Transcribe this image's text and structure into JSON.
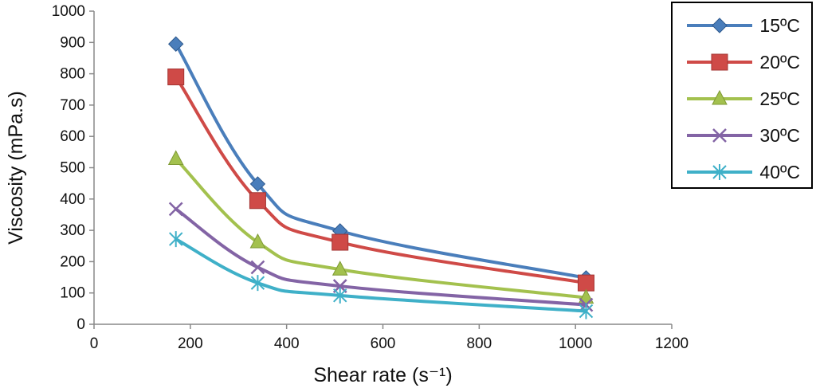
{
  "chart_data": {
    "type": "line",
    "title": "",
    "xlabel": "Shear rate (s⁻¹)",
    "ylabel": "Viscosity (mPa.s)",
    "xlim": [
      0,
      1200
    ],
    "ylim": [
      0,
      1000
    ],
    "x_ticks": [
      0,
      200,
      400,
      600,
      800,
      1000,
      1200
    ],
    "y_ticks": [
      0,
      100,
      200,
      300,
      400,
      500,
      600,
      700,
      800,
      900,
      1000
    ],
    "grid": false,
    "legend_position": "top-right",
    "x": [
      170,
      340,
      511,
      1022
    ],
    "series": [
      {
        "name": "15ºC",
        "values": [
          895,
          448,
          298,
          148
        ],
        "color": "#4a7ebb",
        "marker": "diamond"
      },
      {
        "name": "20ºC",
        "values": [
          790,
          395,
          262,
          132
        ],
        "color": "#cf4a47",
        "marker": "square"
      },
      {
        "name": "25ºC",
        "values": [
          528,
          262,
          175,
          85
        ],
        "color": "#a3c14e",
        "marker": "triangle"
      },
      {
        "name": "30ºC",
        "values": [
          368,
          182,
          122,
          62
        ],
        "color": "#8364a5",
        "marker": "x"
      },
      {
        "name": "40ºC",
        "values": [
          272,
          132,
          92,
          42
        ],
        "color": "#3fb0c8",
        "marker": "star"
      }
    ]
  }
}
